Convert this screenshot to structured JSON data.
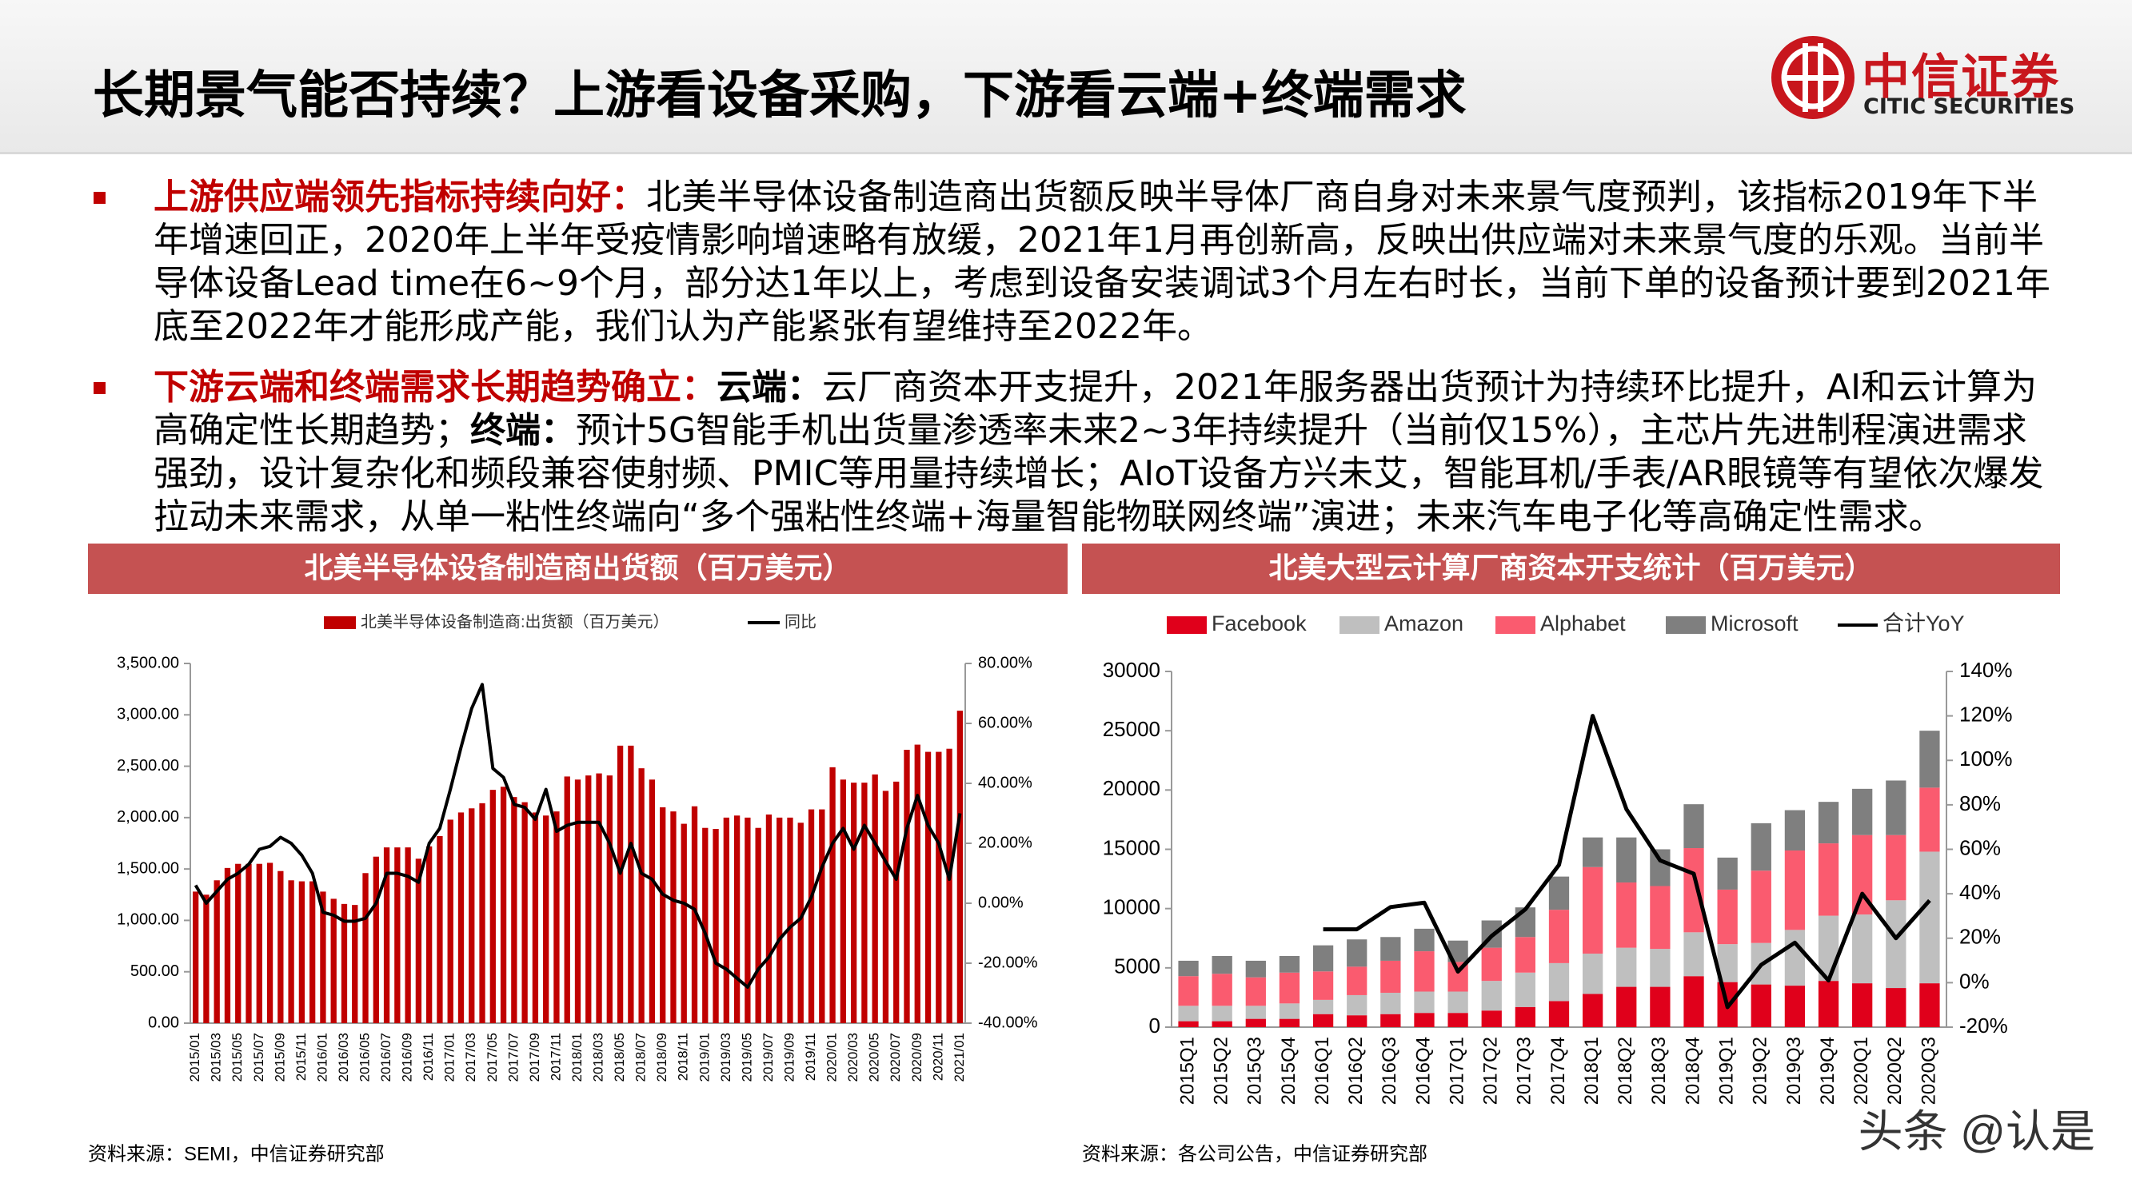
{
  "header": {
    "title": "长期景气能否持续？上游看设备采购，下游看云端+终端需求",
    "logo_cn": "中信证券",
    "logo_en": "CITIC SECURITIES"
  },
  "bullets": [
    {
      "lead": "上游供应端领先指标持续向好：",
      "text": "北美半导体设备制造商出货额反映半导体厂商自身对未来景气度预判，该指标2019年下半年增速回正，2020年上半年受疫情影响增速略有放缓，2021年1月再创新高，反映出供应端对未来景气度的乐观。当前半导体设备Lead time在6~9个月，部分达1年以上，考虑到设备安装调试3个月左右时长，当前下单的设备预计要到2021年底至2022年才能形成产能，我们认为产能紧张有望维持至2022年。"
    },
    {
      "lead": "下游云端和终端需求长期趋势确立：",
      "items": [
        {
          "label": "云端：",
          "text": "云厂商资本开支提升，2021年服务器出货预计为持续环比提升，AI和云计算为高确定性长期趋势；"
        },
        {
          "label": "终端：",
          "text": "预计5G智能手机出货量渗透率未来2~3年持续提升（当前仅15%），主芯片先进制程演进需求强劲，设计复杂化和频段兼容使射频、PMIC等用量持续增长；AIoT设备方兴未艾，智能耳机/手表/AR眼镜等有望依次爆发拉动未来需求，从单一粘性终端向“多个强粘性终端+海量智能物联网终端”演进；未来汽车电子化等高确定性需求。"
        }
      ]
    }
  ],
  "chart_data": [
    {
      "type": "combo",
      "title": "北美半导体设备制造商出货额（百万美元）",
      "source": "资料来源：SEMI，中信证券研究部",
      "categories": [
        "2015/01",
        null,
        "2015/03",
        null,
        "2015/05",
        null,
        "2015/07",
        null,
        "2015/09",
        null,
        "2015/11",
        null,
        "2016/01",
        null,
        "2016/03",
        null,
        "2016/05",
        null,
        "2016/07",
        null,
        "2016/09",
        null,
        "2016/11",
        null,
        "2017/01",
        null,
        "2017/03",
        null,
        "2017/05",
        null,
        "2017/07",
        null,
        "2017/09",
        null,
        "2017/11",
        null,
        "2018/01",
        null,
        "2018/03",
        null,
        "2018/05",
        null,
        "2018/07",
        null,
        "2018/09",
        null,
        "2018/11",
        null,
        "2019/01",
        null,
        "2019/03",
        null,
        "2019/05",
        null,
        "2019/07",
        null,
        "2019/09",
        null,
        "2019/11",
        null,
        "2020/01",
        null,
        "2020/03",
        null,
        "2020/05",
        null,
        "2020/07",
        null,
        "2020/09",
        null,
        "2020/11",
        null,
        "2021/01"
      ],
      "series": [
        {
          "name": "北美半导体设备制造商:出货额（百万美元）",
          "type": "bar",
          "color": "#c00000",
          "values": [
            1280,
            1250,
            1390,
            1510,
            1550,
            1550,
            1550,
            1560,
            1480,
            1390,
            1380,
            1380,
            1280,
            1210,
            1160,
            1150,
            1460,
            1620,
            1710,
            1710,
            1710,
            1600,
            1720,
            1820,
            1980,
            2050,
            2090,
            2140,
            2270,
            2300,
            2200,
            2150,
            2050,
            2020,
            2060,
            2400,
            2370,
            2410,
            2430,
            2410,
            2700,
            2700,
            2480,
            2370,
            2100,
            2060,
            1940,
            2110,
            1900,
            1890,
            2000,
            2020,
            2000,
            1900,
            2030,
            2000,
            2000,
            1950,
            2080,
            2080,
            2490,
            2370,
            2340,
            2340,
            2420,
            2260,
            2350,
            2660,
            2710,
            2640,
            2640,
            2670,
            3040
          ]
        },
        {
          "name": "同比",
          "type": "line",
          "axis": "y2",
          "color": "#000000",
          "values": [
            6,
            0,
            4,
            8,
            10,
            13,
            18,
            19,
            22,
            20,
            16,
            10,
            -3,
            -4,
            -6,
            -6,
            -5,
            0,
            10,
            10,
            9,
            7,
            20,
            25,
            38,
            52,
            65,
            73,
            45,
            42,
            33,
            32,
            28,
            38,
            24,
            26,
            27,
            27,
            27,
            20,
            10,
            20,
            10,
            8,
            3,
            1,
            0,
            -2,
            -10,
            -20,
            -22,
            -25,
            -28,
            -22,
            -18,
            -12,
            -8,
            -5,
            2,
            12,
            20,
            25,
            18,
            26,
            20,
            14,
            8,
            25,
            36,
            26,
            20,
            8,
            30
          ]
        }
      ],
      "ylim": [
        0,
        3500
      ],
      "yticks": [
        {
          "value": 0,
          "label": "0.00"
        },
        {
          "value": 500,
          "label": "500.00"
        },
        {
          "value": 1000,
          "label": "1,000.00"
        },
        {
          "value": 1500,
          "label": "1,500.00"
        },
        {
          "value": 2000,
          "label": "2,000.00"
        },
        {
          "value": 2500,
          "label": "2,500.00"
        },
        {
          "value": 3000,
          "label": "3,000.00"
        },
        {
          "value": 3500,
          "label": "3,500.00"
        }
      ],
      "y2lim": [
        -40,
        80
      ],
      "y2ticks": [
        {
          "value": -40,
          "label": "-40.00%"
        },
        {
          "value": -20,
          "label": "-20.00%"
        },
        {
          "value": 0,
          "label": "0.00%"
        },
        {
          "value": 20,
          "label": "20.00%"
        },
        {
          "value": 40,
          "label": "40.00%"
        },
        {
          "value": 60,
          "label": "60.00%"
        },
        {
          "value": 80,
          "label": "80.00%"
        }
      ],
      "grid": false
    },
    {
      "type": "stacked_bar",
      "title": "北美大型云计算厂商资本开支统计（百万美元）",
      "source": "资料来源：各公司公告，中信证券研究部",
      "categories": [
        "2015Q1",
        "2015Q2",
        "2015Q3",
        "2015Q4",
        "2016Q1",
        "2016Q2",
        "2016Q3",
        "2016Q4",
        "2017Q1",
        "2017Q2",
        "2017Q3",
        "2017Q4",
        "2018Q1",
        "2018Q2",
        "2018Q3",
        "2018Q4",
        "2019Q1",
        "2019Q2",
        "2019Q3",
        "2019Q4",
        "2020Q1",
        "2020Q2",
        "2020Q3"
      ],
      "series": [
        {
          "name": "Facebook",
          "type": "bar",
          "color": "#e0001b",
          "values": [
            500,
            500,
            700,
            700,
            1100,
            1000,
            1100,
            1200,
            1200,
            1400,
            1700,
            2200,
            2800,
            3400,
            3400,
            4300,
            3800,
            3600,
            3500,
            3900,
            3700,
            3300,
            3700
          ]
        },
        {
          "name": "Amazon",
          "type": "bar",
          "color": "#bfbfbf",
          "values": [
            1300,
            1300,
            1100,
            1300,
            1200,
            1700,
            1800,
            1800,
            1800,
            2500,
            2900,
            3200,
            3400,
            3300,
            3200,
            3700,
            3200,
            3500,
            4700,
            5500,
            5800,
            7400,
            11100
          ]
        },
        {
          "name": "Alphabet",
          "type": "bar",
          "color": "#fa5b6f",
          "values": [
            2500,
            2700,
            2400,
            2600,
            2400,
            2400,
            2700,
            3400,
            2500,
            2800,
            3000,
            4500,
            7300,
            5500,
            5300,
            7100,
            4600,
            6100,
            6700,
            6100,
            6700,
            5500,
            5400
          ]
        },
        {
          "name": "Microsoft",
          "type": "bar",
          "color": "#7f7f7f",
          "values": [
            1300,
            1500,
            1400,
            1400,
            2200,
            2300,
            2000,
            1900,
            1800,
            2300,
            2500,
            2800,
            2500,
            3800,
            3100,
            3700,
            2700,
            4000,
            3400,
            3500,
            3900,
            4600,
            4800
          ]
        },
        {
          "name": "合计YoY",
          "type": "line",
          "axis": "y2",
          "color": "#000000",
          "values": [
            null,
            null,
            null,
            null,
            24,
            24,
            34,
            36,
            5,
            21,
            33,
            53,
            120,
            78,
            55,
            49,
            -11,
            8,
            18,
            1,
            40,
            20,
            37
          ]
        }
      ],
      "ylim": [
        0,
        30000
      ],
      "yticks": [
        0,
        5000,
        10000,
        15000,
        20000,
        25000,
        30000
      ],
      "y2lim": [
        -20,
        140
      ],
      "y2ticks": [
        {
          "value": -20,
          "label": "-20%"
        },
        {
          "value": 0,
          "label": "0%"
        },
        {
          "value": 20,
          "label": "20%"
        },
        {
          "value": 40,
          "label": "40%"
        },
        {
          "value": 60,
          "label": "60%"
        },
        {
          "value": 80,
          "label": "80%"
        },
        {
          "value": 100,
          "label": "100%"
        },
        {
          "value": 120,
          "label": "120%"
        },
        {
          "value": 140,
          "label": "140%"
        }
      ],
      "grid": false
    }
  ],
  "watermark": "头条 @认是"
}
